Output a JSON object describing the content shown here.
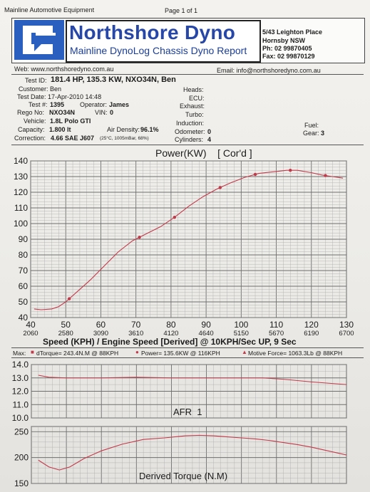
{
  "page": {
    "company": "Mainline Automotive Equipment",
    "page_num": "Page 1 of 1"
  },
  "header": {
    "brand": "Northshore Dyno",
    "subtitle": "Mainline DynoLog Chassis Dyno Report",
    "address": [
      "5/43 Leighton Place",
      "Hornsby NSW",
      "Ph: 02 99870405",
      "Fax: 02 99870129"
    ],
    "web": "Web: www.northshoredyno.com.au",
    "email": "Email: info@northshoredyno.com.au"
  },
  "test_info": {
    "test_id_label": "Test ID:",
    "test_id_value": "181.4 HP, 135.3 KW, NXO34N, Ben",
    "customer": "Customer: Ben",
    "test_date": "Test Date: 17-Apr-2010 14:48",
    "test_num_label": "Test #:",
    "test_num_value": "1395",
    "operator_label": "Operator:",
    "operator_value": "James",
    "rego_label": "Rego No:",
    "rego_value": "NXO34N",
    "vin_label": "VIN:",
    "vin_value": "0",
    "vehicle_label": "Vehicle:",
    "vehicle_value": "1.8L Polo GTI",
    "capacity_label": "Capacity:",
    "capacity_value": "1.800 lt",
    "air_density_label": "Air Density:",
    "air_density_value": "96.1%",
    "air_density_note": "(25°C, 1005mBar, 68%)",
    "correction_label": "Correction:",
    "correction_value": "4.66 SAE J607",
    "heads": "Heads:",
    "ecu": "ECU:",
    "exhaust": "Exhaust:",
    "turbo": "Turbo:",
    "induction": "Induction:",
    "odometer_label": "Odometer:",
    "odometer_value": "0",
    "cylinders_label": "Cylinders:",
    "cylinders_value": "4",
    "fuel": "Fuel:",
    "gear_label": "Gear:",
    "gear_value": "3"
  },
  "summary": {
    "max": "Max:",
    "torque": "dTorque= 243.4N.M @ 88KPH",
    "power": "Power= 135.6KW @ 116KPH",
    "force": "Motive Force= 1063.3Lb @ 88KPH"
  },
  "chart_data": [
    {
      "type": "line",
      "title": "Power(KW)    [ Cor'd ]",
      "xlabel": "Speed (KPH) / Engine Speed [Derived] @ 10KPH/Sec UP, 9 Sec",
      "xlim": [
        40,
        130
      ],
      "ylim": [
        40,
        140
      ],
      "x_ticks": [
        "40",
        "50",
        "60",
        "70",
        "80",
        "90",
        "100",
        "110",
        "120",
        "130"
      ],
      "x_ticks_rpm": [
        "2060",
        "2580",
        "3090",
        "3610",
        "4120",
        "4640",
        "5150",
        "5670",
        "6190",
        "6700"
      ],
      "y_ticks": [
        "140",
        "130",
        "120",
        "110",
        "100",
        "90",
        "80",
        "70",
        "60",
        "50",
        "40"
      ],
      "grid": true,
      "series": [
        {
          "x": [
            41,
            43,
            46,
            48,
            50,
            53,
            57,
            61,
            65,
            69,
            73,
            77,
            81,
            85,
            89,
            93,
            97,
            101,
            105,
            109,
            113,
            116,
            120,
            123,
            126,
            129
          ],
          "values": [
            45.5,
            45,
            45.5,
            47,
            50,
            56,
            64,
            73,
            82,
            89,
            93.5,
            98,
            104,
            111,
            117,
            122,
            126,
            129.5,
            132,
            133,
            134,
            134,
            132.5,
            131,
            130,
            129
          ]
        }
      ],
      "markers_x": [
        51,
        71,
        81,
        94,
        104,
        114,
        124
      ]
    },
    {
      "type": "line",
      "label": "AFR  1",
      "ylim": [
        10.0,
        14.0
      ],
      "y_ticks": [
        "14.0",
        "13.0",
        "12.0",
        "11.0",
        "10.0"
      ],
      "grid": true,
      "series": [
        {
          "x": [
            42,
            45,
            50,
            60,
            70,
            80,
            90,
            100,
            106,
            112,
            116,
            120,
            125,
            130
          ],
          "values": [
            13.2,
            13.05,
            13.0,
            13.0,
            13.05,
            13.0,
            13.0,
            13.0,
            13.0,
            12.9,
            12.8,
            12.7,
            12.6,
            12.5
          ]
        }
      ]
    },
    {
      "type": "line",
      "label": "Derived Torque (N.M)",
      "ylim": [
        150,
        260
      ],
      "y_ticks": [
        "250",
        "200",
        "150"
      ],
      "grid": true,
      "series": [
        {
          "x": [
            42,
            45,
            48,
            51,
            55,
            60,
            66,
            72,
            78,
            84,
            88,
            92,
            96,
            100,
            104,
            108,
            112,
            116,
            120,
            124,
            128,
            130
          ],
          "values": [
            195,
            182,
            176,
            182,
            198,
            213,
            226,
            235,
            238,
            242,
            243,
            242,
            240,
            238,
            236,
            233,
            229,
            225,
            220,
            214,
            208,
            205
          ]
        }
      ]
    }
  ]
}
